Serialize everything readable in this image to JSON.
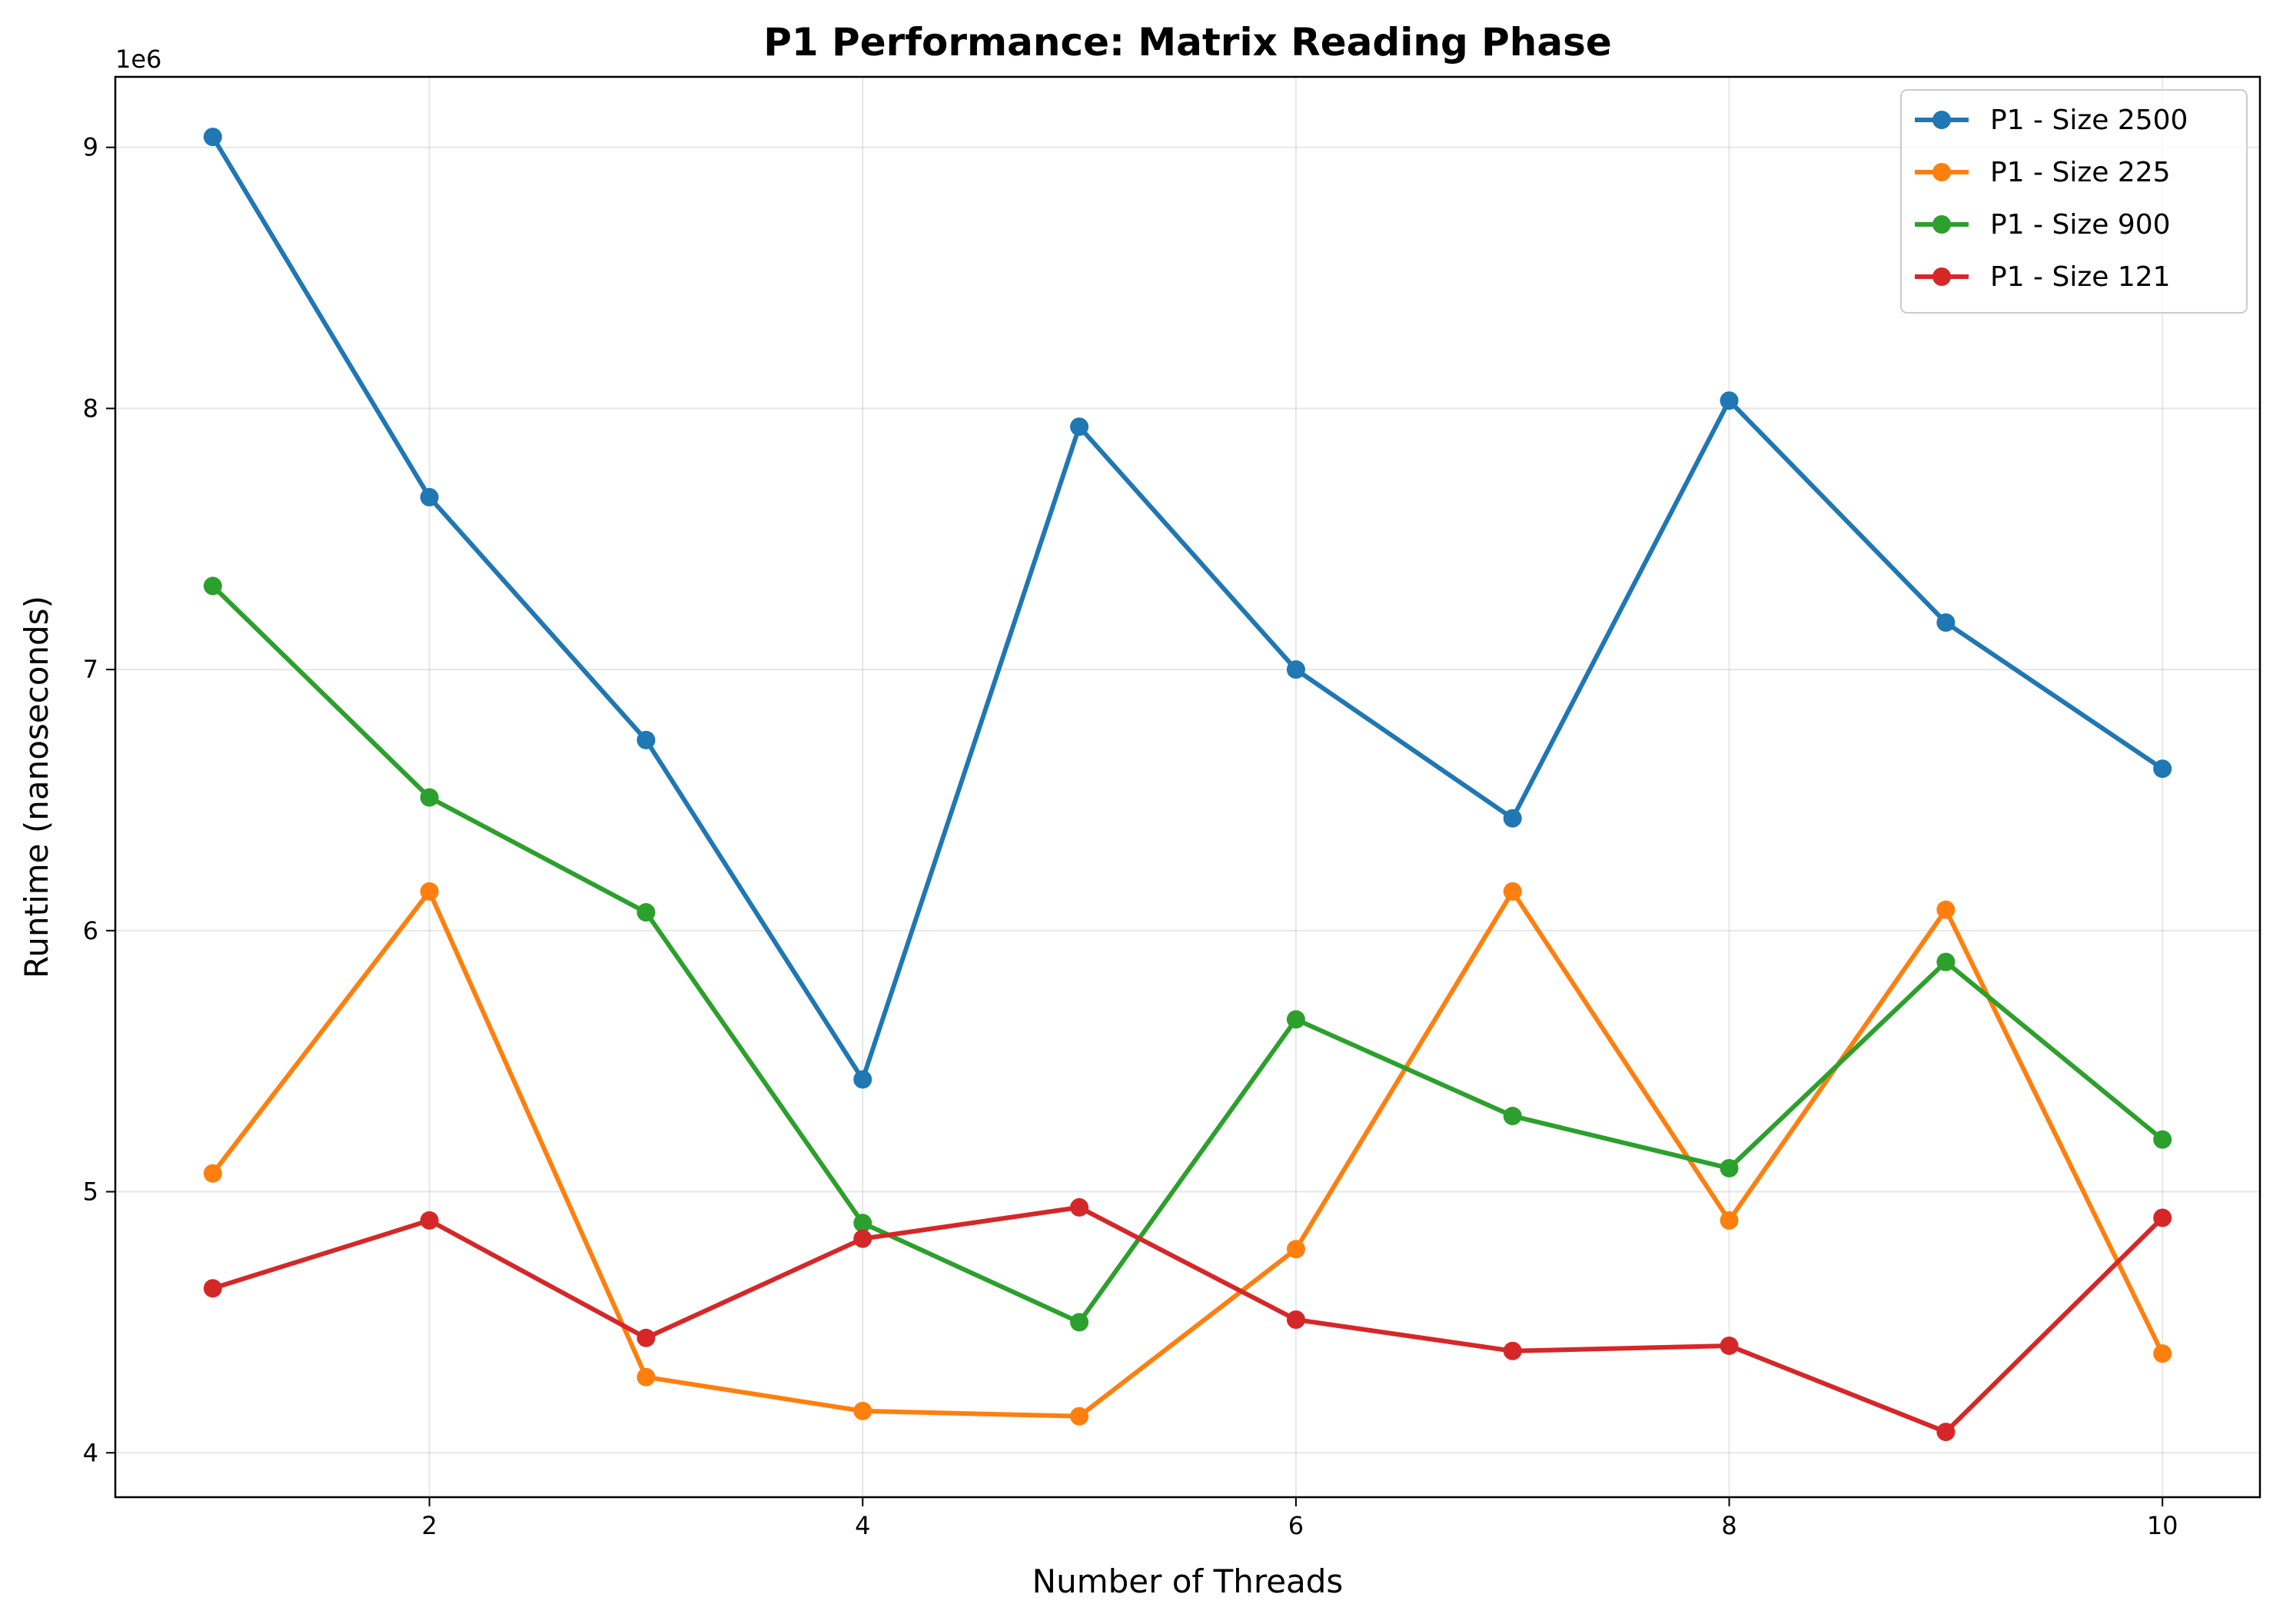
{
  "chart_data": {
    "type": "line",
    "title": "P1 Performance: Matrix Reading Phase",
    "xlabel": "Number of Threads",
    "ylabel": "Runtime (nanoseconds)",
    "y_offset_label": "1e6",
    "x": [
      1,
      2,
      3,
      4,
      5,
      6,
      7,
      8,
      9,
      10
    ],
    "xlim": [
      0.55,
      10.45
    ],
    "ylim": [
      3830000,
      9270000
    ],
    "xticks": [
      2,
      4,
      6,
      8,
      10
    ],
    "yticks": [
      4000000,
      5000000,
      6000000,
      7000000,
      8000000,
      9000000
    ],
    "ytick_labels": [
      "4",
      "5",
      "6",
      "7",
      "8",
      "9"
    ],
    "grid": true,
    "legend_position": "top-right",
    "series": [
      {
        "name": "P1 - Size 2500",
        "color": "#1f77b4",
        "values": [
          9040000,
          7660000,
          6730000,
          5430000,
          7930000,
          7000000,
          6430000,
          8030000,
          7180000,
          6620000
        ]
      },
      {
        "name": "P1 - Size 225",
        "color": "#ff7f0e",
        "values": [
          5070000,
          6150000,
          4290000,
          4160000,
          4140000,
          4780000,
          6150000,
          4890000,
          6080000,
          4380000
        ]
      },
      {
        "name": "P1 - Size 900",
        "color": "#2ca02c",
        "values": [
          7320000,
          6510000,
          6070000,
          4880000,
          4500000,
          5660000,
          5290000,
          5090000,
          5880000,
          5200000
        ]
      },
      {
        "name": "P1 - Size 121",
        "color": "#d62728",
        "values": [
          4630000,
          4890000,
          4440000,
          4820000,
          4940000,
          4510000,
          4390000,
          4410000,
          4080000,
          4900000
        ]
      }
    ]
  }
}
